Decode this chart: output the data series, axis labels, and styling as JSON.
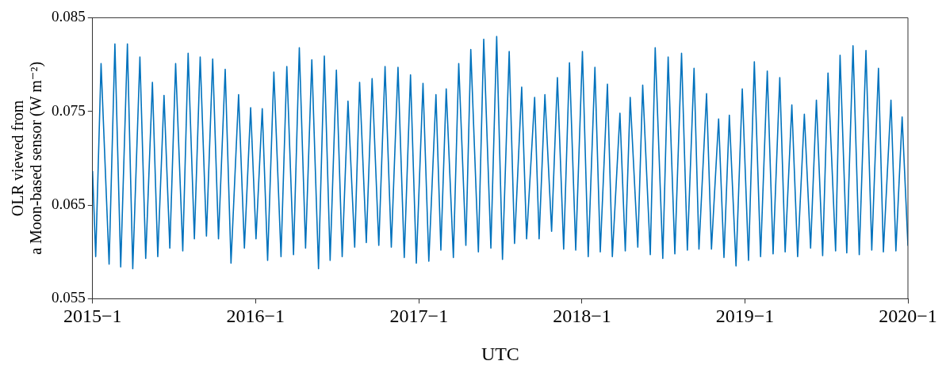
{
  "chart_data": {
    "type": "line",
    "xlabel": "UTC",
    "ylabel": "OLR viewed from\na Moon-based sensor (W m⁻²)",
    "xlim": [
      "2015-01",
      "2020-01"
    ],
    "xticks": [
      {
        "value": "2015-01",
        "label": "2015−1"
      },
      {
        "value": "2016-01",
        "label": "2016−1"
      },
      {
        "value": "2017-01",
        "label": "2017−1"
      },
      {
        "value": "2018-01",
        "label": "2018−1"
      },
      {
        "value": "2019-01",
        "label": "2019−1"
      },
      {
        "value": "2020-01",
        "label": "2020−1"
      }
    ],
    "ylim": [
      0.055,
      0.085
    ],
    "yticks": [
      0.055,
      0.065,
      0.075,
      0.085
    ],
    "grid": false,
    "legend": false,
    "marker": "none",
    "line_style": "solid",
    "x": [
      "2015-01-01",
      "2015-01-08",
      "2015-01-20",
      "2015-02-07",
      "2015-02-20",
      "2015-03-05",
      "2015-03-20",
      "2015-04-01",
      "2015-04-17",
      "2015-04-30",
      "2015-05-15",
      "2015-05-27",
      "2015-06-10",
      "2015-06-23",
      "2015-07-06",
      "2015-07-22",
      "2015-08-03",
      "2015-08-17",
      "2015-08-30",
      "2015-09-13",
      "2015-09-27",
      "2015-10-10",
      "2015-10-25",
      "2015-11-07",
      "2015-11-24",
      "2015-12-07",
      "2015-12-21",
      "2016-01-02",
      "2016-01-16",
      "2016-01-28",
      "2016-02-11",
      "2016-02-27",
      "2016-03-11",
      "2016-03-26",
      "2016-04-08",
      "2016-04-22",
      "2016-05-06",
      "2016-05-21",
      "2016-06-03",
      "2016-06-16",
      "2016-06-30",
      "2016-07-13",
      "2016-07-26",
      "2016-08-10",
      "2016-08-21",
      "2016-09-05",
      "2016-09-18",
      "2016-10-03",
      "2016-10-17",
      "2016-10-31",
      "2016-11-15",
      "2016-11-29",
      "2016-12-13",
      "2016-12-26",
      "2017-01-10",
      "2017-01-23",
      "2017-02-08",
      "2017-02-19",
      "2017-03-03",
      "2017-03-19",
      "2017-03-31",
      "2017-04-16",
      "2017-04-27",
      "2017-05-14",
      "2017-05-26",
      "2017-06-11",
      "2017-06-24",
      "2017-07-07",
      "2017-07-22",
      "2017-08-03",
      "2017-08-19",
      "2017-08-30",
      "2017-09-17",
      "2017-09-27",
      "2017-10-10",
      "2017-10-25",
      "2017-11-07",
      "2017-11-21",
      "2017-12-04",
      "2017-12-18",
      "2018-01-02",
      "2018-01-15",
      "2018-01-30",
      "2018-02-11",
      "2018-02-27",
      "2018-03-10",
      "2018-03-27",
      "2018-04-08",
      "2018-04-19",
      "2018-05-06",
      "2018-05-17",
      "2018-06-03",
      "2018-06-14",
      "2018-07-01",
      "2018-07-13",
      "2018-07-28",
      "2018-08-12",
      "2018-08-25",
      "2018-09-09",
      "2018-09-20",
      "2018-10-07",
      "2018-10-18",
      "2018-11-03",
      "2018-11-15",
      "2018-11-27",
      "2018-12-12",
      "2018-12-26",
      "2019-01-09",
      "2019-01-22",
      "2019-02-05",
      "2019-02-20",
      "2019-03-05",
      "2019-03-20",
      "2019-04-01",
      "2019-04-16",
      "2019-04-29",
      "2019-05-14",
      "2019-05-28",
      "2019-06-10",
      "2019-06-24",
      "2019-07-06",
      "2019-07-23",
      "2019-08-02",
      "2019-08-17",
      "2019-08-31",
      "2019-09-14",
      "2019-09-29",
      "2019-10-12",
      "2019-10-27",
      "2019-11-07",
      "2019-11-24",
      "2019-12-05",
      "2019-12-19",
      "2020-01-01"
    ],
    "series": [
      {
        "color": "#0072bd",
        "values": [
          0.0686,
          0.0595,
          0.0801,
          0.0587,
          0.0822,
          0.0584,
          0.0822,
          0.0582,
          0.0808,
          0.0593,
          0.0781,
          0.0595,
          0.0767,
          0.0604,
          0.0801,
          0.0601,
          0.0812,
          0.0614,
          0.0808,
          0.0617,
          0.0806,
          0.0614,
          0.0795,
          0.0588,
          0.0768,
          0.0604,
          0.0754,
          0.0614,
          0.0753,
          0.0591,
          0.0792,
          0.0595,
          0.0798,
          0.0597,
          0.0818,
          0.0604,
          0.0805,
          0.0582,
          0.0809,
          0.0591,
          0.0794,
          0.0595,
          0.0761,
          0.0605,
          0.0781,
          0.061,
          0.0785,
          0.0607,
          0.0798,
          0.0605,
          0.0797,
          0.0594,
          0.0789,
          0.0588,
          0.078,
          0.059,
          0.0768,
          0.0602,
          0.0774,
          0.0594,
          0.0801,
          0.0607,
          0.0816,
          0.06,
          0.0827,
          0.0604,
          0.083,
          0.0592,
          0.0814,
          0.0609,
          0.0776,
          0.0614,
          0.0765,
          0.0614,
          0.0768,
          0.0622,
          0.0786,
          0.0603,
          0.0802,
          0.0602,
          0.0814,
          0.0595,
          0.0797,
          0.06,
          0.0779,
          0.0595,
          0.0748,
          0.0601,
          0.0765,
          0.0605,
          0.0778,
          0.0597,
          0.0818,
          0.0593,
          0.0808,
          0.0598,
          0.0812,
          0.0602,
          0.0796,
          0.0603,
          0.0769,
          0.0603,
          0.0742,
          0.0594,
          0.0746,
          0.0585,
          0.0774,
          0.0591,
          0.0803,
          0.0595,
          0.0793,
          0.0598,
          0.0786,
          0.06,
          0.0757,
          0.0595,
          0.0747,
          0.0604,
          0.0762,
          0.0596,
          0.0791,
          0.0601,
          0.081,
          0.0599,
          0.082,
          0.0597,
          0.0815,
          0.0602,
          0.0796,
          0.06,
          0.0762,
          0.0601,
          0.0744,
          0.0607
        ]
      }
    ]
  }
}
